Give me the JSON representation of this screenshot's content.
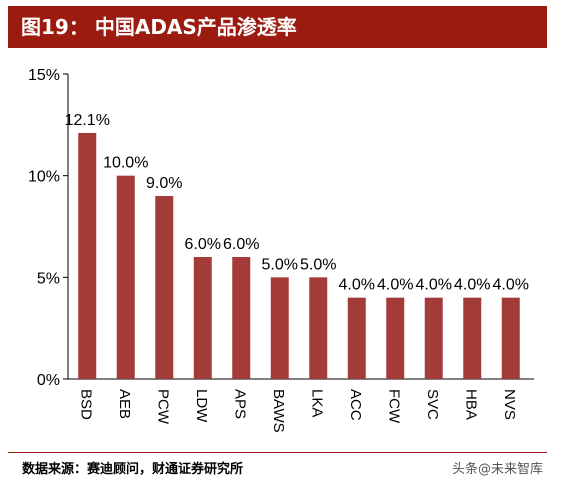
{
  "header": {
    "figure_label": "图19：",
    "title": "中国ADAS产品渗透率"
  },
  "footer": {
    "source": "数据来源：赛迪顾问，财通证券研究所",
    "watermark": "头条@未来智库"
  },
  "chart_data": {
    "type": "bar",
    "categories": [
      "BSD",
      "AEB",
      "PCW",
      "LDW",
      "APS",
      "BAWS",
      "LKA",
      "ACC",
      "FCW",
      "SVC",
      "HBA",
      "NVS"
    ],
    "values": [
      12.1,
      10.0,
      9.0,
      6.0,
      6.0,
      5.0,
      5.0,
      4.0,
      4.0,
      4.0,
      4.0,
      4.0
    ],
    "data_labels": [
      "12.1%",
      "10.0%",
      "9.0%",
      "6.0%",
      "6.0%",
      "5.0%",
      "5.0%",
      "4.0%",
      "4.0%",
      "4.0%",
      "4.0%",
      "4.0%"
    ],
    "yticks": [
      0,
      5,
      10,
      15
    ],
    "ytick_labels": [
      "0%",
      "5%",
      "10%",
      "15%"
    ],
    "ylim": [
      0,
      15
    ],
    "bar_color": "#a33c39",
    "grid": false,
    "legend": "none"
  },
  "colors": {
    "header_bg": "#9b1b10",
    "header_text": "#ffffff"
  }
}
